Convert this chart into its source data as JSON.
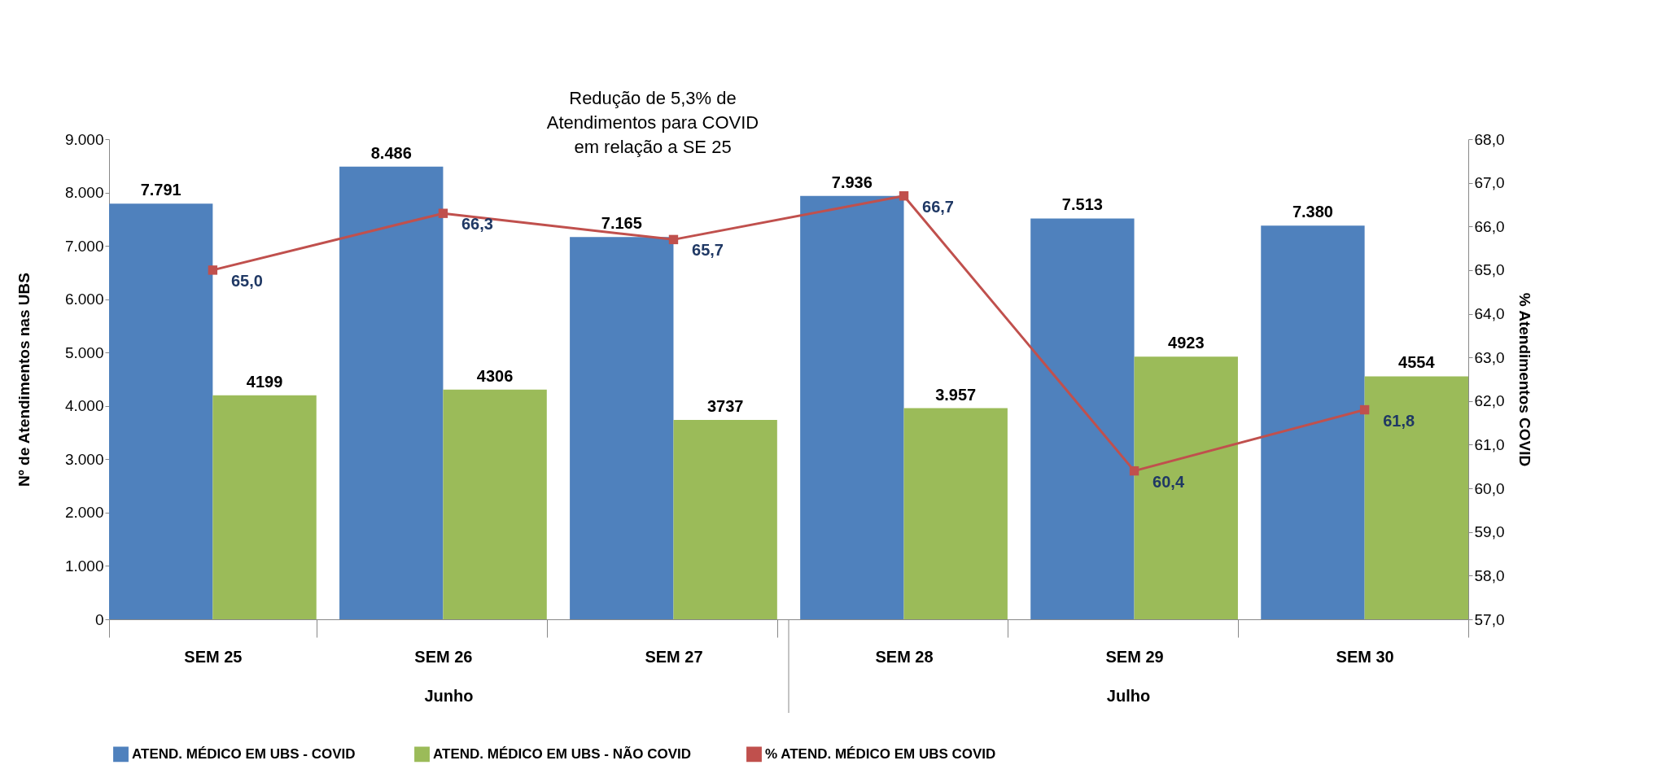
{
  "chart_data": {
    "type": "bar",
    "categories": [
      "SEM 25",
      "SEM 26",
      "SEM 27",
      "SEM 28",
      "SEM 29",
      "SEM  30"
    ],
    "series": [
      {
        "name": "ATEND.  MÉDICO EM UBS  - COVID",
        "color": "#4f81bd",
        "values": [
          7791,
          8486,
          7165,
          7936,
          7513,
          7380
        ],
        "value_labels": [
          "7.791",
          "8.486",
          "7.165",
          "7.936",
          "7.513",
          "7.380"
        ]
      },
      {
        "name": "ATEND. MÉDICO EM UBS  - NÃO COVID",
        "color": "#9bbb59",
        "values": [
          4199,
          4306,
          3737,
          3957,
          4923,
          4554
        ],
        "value_labels": [
          "4199",
          "4306",
          "3737",
          "3.957",
          "4923",
          "4554"
        ]
      },
      {
        "name": "% ATEND.  MÉDICO EM UBS COVID",
        "type": "line",
        "axis": "y2",
        "marker": "square",
        "color": "#c0504d",
        "values": [
          65.0,
          66.3,
          65.7,
          66.7,
          60.4,
          61.8
        ],
        "value_labels": [
          "65,0",
          "66,3",
          "65,7",
          "66,7",
          "60,4",
          "61,8"
        ]
      }
    ],
    "ylabel": "Nº de Atendimentos nas UBS",
    "y2label": "% Atendimentos COVID",
    "ylim": [
      0,
      9000
    ],
    "yticks": [
      {
        "value": 0,
        "label": "0"
      },
      {
        "value": 1000,
        "label": "1.000"
      },
      {
        "value": 2000,
        "label": "2.000"
      },
      {
        "value": 3000,
        "label": "3.000"
      },
      {
        "value": 4000,
        "label": "4.000"
      },
      {
        "value": 5000,
        "label": "5.000"
      },
      {
        "value": 6000,
        "label": "6.000"
      },
      {
        "value": 7000,
        "label": "7.000"
      },
      {
        "value": 8000,
        "label": "8.000"
      },
      {
        "value": 9000,
        "label": "9.000"
      }
    ],
    "y2lim": [
      57,
      68
    ],
    "y2ticks": [
      {
        "value": 57,
        "label": "57,0"
      },
      {
        "value": 58,
        "label": "58,0"
      },
      {
        "value": 59,
        "label": "59,0"
      },
      {
        "value": 60,
        "label": "60,0"
      },
      {
        "value": 61,
        "label": "61,0"
      },
      {
        "value": 62,
        "label": "62,0"
      },
      {
        "value": 63,
        "label": "63,0"
      },
      {
        "value": 64,
        "label": "64,0"
      },
      {
        "value": 65,
        "label": "65,0"
      },
      {
        "value": 66,
        "label": "66,0"
      },
      {
        "value": 67,
        "label": "67,0"
      },
      {
        "value": 68,
        "label": "68,0"
      }
    ],
    "annotations": [
      "Redução de 5,3% de\nAtendimentos para COVID\nem relação a SE 25",
      "Junho",
      "Julho"
    ],
    "grid": false,
    "legend": "bottom"
  }
}
